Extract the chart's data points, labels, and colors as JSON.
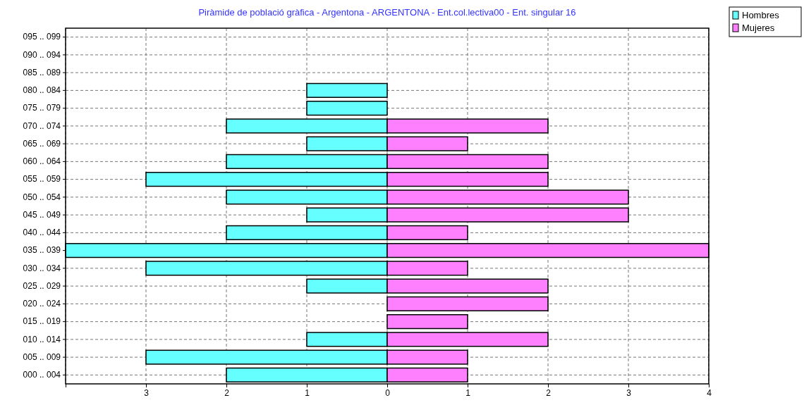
{
  "chart_data": {
    "type": "bar",
    "orientation": "horizontal",
    "title": "Piràmide de població gràfica - Argentona - ARGENTONA - Ent.col.lectiva00 - Ent. singular 16",
    "categories": [
      "095 .. 099",
      "090 .. 094",
      "085 .. 089",
      "080 .. 084",
      "075 .. 079",
      "070 .. 074",
      "065 .. 069",
      "060 .. 064",
      "055 .. 059",
      "050 .. 054",
      "045 .. 049",
      "040 .. 044",
      "035 .. 039",
      "030 .. 034",
      "025 .. 029",
      "020 .. 024",
      "015 .. 019",
      "010 .. 014",
      "005 .. 009",
      "000 .. 004"
    ],
    "series": [
      {
        "name": "Hombres",
        "color": "#66ffff",
        "values": [
          0,
          0,
          0,
          -1,
          -1,
          -2,
          -1,
          -2,
          -3,
          -2,
          -1,
          -2,
          -4,
          -3,
          -1,
          0,
          0,
          -1,
          -3,
          -2
        ]
      },
      {
        "name": "Mujeres",
        "color": "#ff80ff",
        "values": [
          0,
          0,
          0,
          0,
          0,
          2,
          1,
          2,
          2,
          3,
          3,
          1,
          4,
          1,
          2,
          2,
          1,
          2,
          1,
          1
        ]
      }
    ],
    "xlim": [
      -4,
      4
    ],
    "xticks": [
      {
        "value": -4,
        "label": null
      },
      {
        "value": -3,
        "label": "3"
      },
      {
        "value": -2,
        "label": "2"
      },
      {
        "value": -1,
        "label": "1"
      },
      0,
      1,
      2,
      3,
      4
    ],
    "grid": true,
    "legend": "top right",
    "stacked": true
  }
}
